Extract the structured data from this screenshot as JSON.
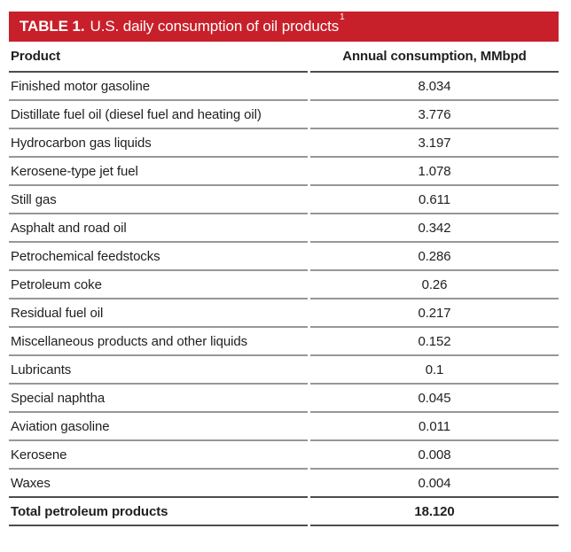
{
  "colors": {
    "title_bar_red": "#c8202a",
    "title_text": "#ffffff",
    "row_line_gray": "#979797",
    "strong_line_gray": "#4d4d4d",
    "body_text": "#1f1f1f"
  },
  "table": {
    "title_label": "TABLE 1.",
    "title_text": "U.S. daily consumption of oil products",
    "title_superscript": "1",
    "columns": [
      "Product",
      "Annual consumption, MMbpd"
    ],
    "rows": [
      {
        "product": "Finished motor gasoline",
        "value": "8.034"
      },
      {
        "product": "Distillate fuel oil (diesel fuel and heating oil)",
        "value": "3.776"
      },
      {
        "product": "Hydrocarbon gas liquids",
        "value": "3.197"
      },
      {
        "product": "Kerosene-type jet fuel",
        "value": "1.078"
      },
      {
        "product": "Still gas",
        "value": "0.611"
      },
      {
        "product": "Asphalt and road oil",
        "value": "0.342"
      },
      {
        "product": "Petrochemical feedstocks",
        "value": "0.286"
      },
      {
        "product": "Petroleum coke",
        "value": "0.26"
      },
      {
        "product": "Residual fuel oil",
        "value": "0.217"
      },
      {
        "product": "Miscellaneous products and other liquids",
        "value": "0.152"
      },
      {
        "product": "Lubricants",
        "value": "0.1"
      },
      {
        "product": "Special naphtha",
        "value": "0.045"
      },
      {
        "product": "Aviation gasoline",
        "value": "0.011"
      },
      {
        "product": "Kerosene",
        "value": "0.008"
      },
      {
        "product": "Waxes",
        "value": "0.004"
      }
    ],
    "total": {
      "product": "Total petroleum products",
      "value": "18.120"
    }
  },
  "chart_data": {
    "type": "table",
    "title": "TABLE 1. U.S. daily consumption of oil products",
    "columns": [
      "Product",
      "Annual consumption, MMbpd"
    ],
    "categories": [
      "Finished motor gasoline",
      "Distillate fuel oil (diesel fuel and heating oil)",
      "Hydrocarbon gas liquids",
      "Kerosene-type jet fuel",
      "Still gas",
      "Asphalt and road oil",
      "Petrochemical feedstocks",
      "Petroleum coke",
      "Residual fuel oil",
      "Miscellaneous products and other liquids",
      "Lubricants",
      "Special naphtha",
      "Aviation gasoline",
      "Kerosene",
      "Waxes"
    ],
    "values": [
      8.034,
      3.776,
      3.197,
      1.078,
      0.611,
      0.342,
      0.286,
      0.26,
      0.217,
      0.152,
      0.1,
      0.045,
      0.011,
      0.008,
      0.004
    ],
    "total_label": "Total petroleum products",
    "total_value": "18.120",
    "units": "MMbpd"
  }
}
